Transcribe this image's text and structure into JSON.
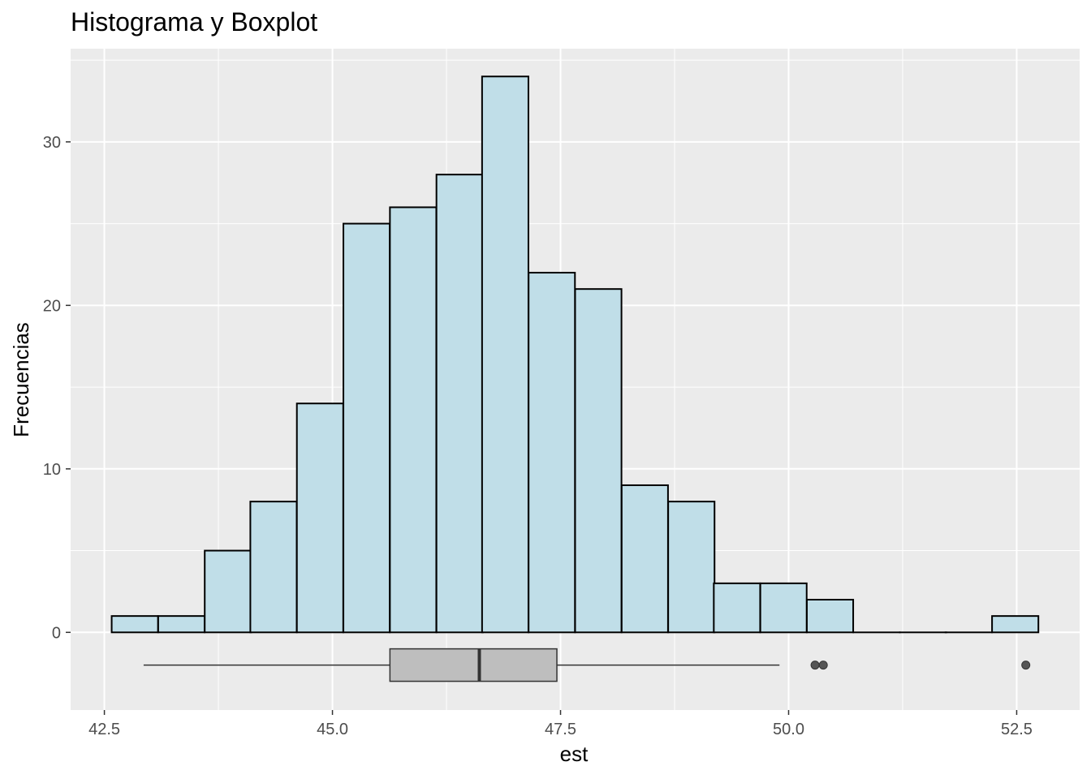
{
  "chart_data": {
    "type": "histogram",
    "title": "Histograma y Boxplot",
    "xlabel": "est",
    "ylabel": "Frecuencias",
    "xlim": [
      42.13,
      53.19
    ],
    "ylim": [
      -4.75,
      35.7
    ],
    "x_ticks": [
      42.5,
      45.0,
      47.5,
      50.0,
      52.5
    ],
    "x_tick_labels": [
      "42.5",
      "45.0",
      "47.5",
      "50.0",
      "52.5"
    ],
    "y_ticks": [
      0,
      10,
      20,
      30
    ],
    "y_tick_labels": [
      "0",
      "10",
      "20",
      "30"
    ],
    "grid": true,
    "bin_width": 0.508,
    "bins": [
      {
        "start": 42.58,
        "count": 1
      },
      {
        "start": 43.09,
        "count": 1
      },
      {
        "start": 43.6,
        "count": 5
      },
      {
        "start": 44.1,
        "count": 8
      },
      {
        "start": 44.61,
        "count": 14
      },
      {
        "start": 45.12,
        "count": 25
      },
      {
        "start": 45.63,
        "count": 26
      },
      {
        "start": 46.14,
        "count": 28
      },
      {
        "start": 46.64,
        "count": 34
      },
      {
        "start": 47.15,
        "count": 22
      },
      {
        "start": 47.66,
        "count": 21
      },
      {
        "start": 48.17,
        "count": 9
      },
      {
        "start": 48.68,
        "count": 8
      },
      {
        "start": 49.18,
        "count": 3
      },
      {
        "start": 49.69,
        "count": 3
      },
      {
        "start": 50.2,
        "count": 2
      },
      {
        "start": 50.71,
        "count": 0
      },
      {
        "start": 51.22,
        "count": 0
      },
      {
        "start": 51.72,
        "count": 0
      },
      {
        "start": 52.23,
        "count": 1
      }
    ],
    "boxplot": {
      "y": -2,
      "whisker_low": 42.93,
      "q1": 45.63,
      "median": 46.61,
      "q3": 47.46,
      "whisker_high": 49.9,
      "outliers": [
        50.29,
        50.38,
        52.6
      ]
    },
    "colors": {
      "panel": "#ebebeb",
      "grid": "#ffffff",
      "bar_fill": "#c0dee8",
      "bar_stroke": "#000000",
      "box_fill": "#bebebe",
      "box_stroke": "#333333",
      "outlier": "#555555"
    }
  }
}
